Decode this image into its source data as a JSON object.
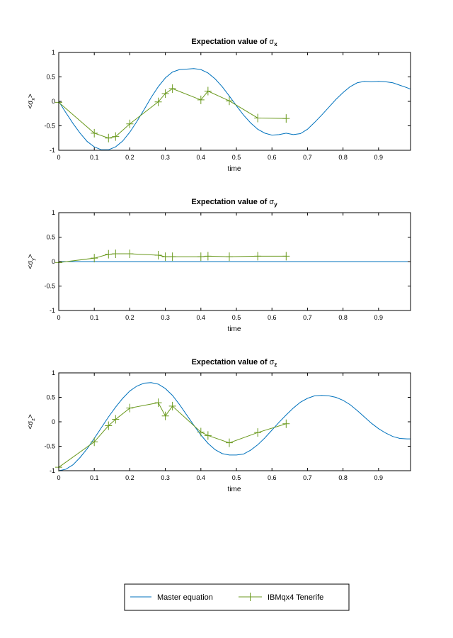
{
  "colors": {
    "master": "#0072BD",
    "ibm": "#6B9A1F",
    "axis": "#000000",
    "background": "#ffffff"
  },
  "legend": {
    "items": [
      {
        "label": "Master equation",
        "style": "line",
        "color": "#0072BD"
      },
      {
        "label": "IBMqx4 Tenerife",
        "style": "line-plus",
        "color": "#6B9A1F"
      }
    ],
    "placement": "bottom-center"
  },
  "chart_data": [
    {
      "type": "line",
      "title": "Expectation value of ",
      "title_symbol": "σ",
      "title_sub": "x",
      "xlabel": "time",
      "ylabel_prefix": "<σ",
      "ylabel_sub": "x",
      "ylabel_suffix": ">",
      "xlim": [
        0,
        0.99
      ],
      "ylim": [
        -1,
        1
      ],
      "xticks": [
        "0",
        "0.1",
        "0.2",
        "0.3",
        "0.4",
        "0.5",
        "0.6",
        "0.7",
        "0.8",
        "0.9"
      ],
      "yticks": [
        "-1",
        "-0.5",
        "0",
        "0.5",
        "1"
      ],
      "grid": false,
      "series": [
        {
          "name": "Master equation",
          "x": [
            0,
            0.02,
            0.04,
            0.06,
            0.08,
            0.1,
            0.12,
            0.14,
            0.16,
            0.18,
            0.2,
            0.22,
            0.24,
            0.26,
            0.28,
            0.3,
            0.32,
            0.34,
            0.36,
            0.38,
            0.4,
            0.42,
            0.44,
            0.46,
            0.48,
            0.5,
            0.52,
            0.54,
            0.56,
            0.58,
            0.6,
            0.62,
            0.64,
            0.66,
            0.68,
            0.7,
            0.72,
            0.74,
            0.76,
            0.78,
            0.8,
            0.82,
            0.84,
            0.86,
            0.88,
            0.9,
            0.92,
            0.94,
            0.96,
            0.98,
            0.99
          ],
          "y": [
            0,
            -0.23,
            -0.45,
            -0.65,
            -0.82,
            -0.93,
            -0.99,
            -0.99,
            -0.93,
            -0.81,
            -0.63,
            -0.41,
            -0.17,
            0.08,
            0.3,
            0.48,
            0.6,
            0.65,
            0.66,
            0.67,
            0.65,
            0.58,
            0.46,
            0.3,
            0.11,
            -0.09,
            -0.28,
            -0.44,
            -0.57,
            -0.65,
            -0.69,
            -0.68,
            -0.65,
            -0.68,
            -0.66,
            -0.57,
            -0.43,
            -0.28,
            -0.12,
            0.04,
            0.18,
            0.3,
            0.38,
            0.41,
            0.4,
            0.41,
            0.4,
            0.38,
            0.33,
            0.28,
            0.25
          ]
        },
        {
          "name": "IBMqx4 Tenerife",
          "x": [
            0,
            0.1,
            0.14,
            0.16,
            0.2,
            0.28,
            0.3,
            0.32,
            0.4,
            0.42,
            0.48,
            0.56,
            0.64
          ],
          "y": [
            -0.02,
            -0.65,
            -0.75,
            -0.72,
            -0.46,
            -0.01,
            0.16,
            0.26,
            0.03,
            0.21,
            0.01,
            -0.34,
            -0.35
          ]
        }
      ]
    },
    {
      "type": "line",
      "title": "Expectation value of ",
      "title_symbol": "σ",
      "title_sub": "y",
      "xlabel": "time",
      "ylabel_prefix": "<σ",
      "ylabel_sub": "y",
      "ylabel_suffix": ">",
      "xlim": [
        0,
        0.99
      ],
      "ylim": [
        -1,
        1
      ],
      "xticks": [
        "0",
        "0.1",
        "0.2",
        "0.3",
        "0.4",
        "0.5",
        "0.6",
        "0.7",
        "0.8",
        "0.9"
      ],
      "yticks": [
        "-1",
        "-0.5",
        "0",
        "0.5",
        "1"
      ],
      "grid": false,
      "series": [
        {
          "name": "Master equation",
          "x": [
            0,
            0.99
          ],
          "y": [
            0,
            0
          ]
        },
        {
          "name": "IBMqx4 Tenerife",
          "x": [
            0,
            0.1,
            0.14,
            0.16,
            0.2,
            0.28,
            0.3,
            0.32,
            0.4,
            0.42,
            0.48,
            0.56,
            0.64
          ],
          "y": [
            -0.02,
            0.07,
            0.15,
            0.16,
            0.16,
            0.13,
            0.1,
            0.1,
            0.1,
            0.11,
            0.1,
            0.11,
            0.11
          ]
        }
      ]
    },
    {
      "type": "line",
      "title": "Expectation value of ",
      "title_symbol": "σ",
      "title_sub": "z",
      "xlabel": "time",
      "ylabel_prefix": "<σ",
      "ylabel_sub": "z",
      "ylabel_suffix": ">",
      "xlim": [
        0,
        0.99
      ],
      "ylim": [
        -1,
        1
      ],
      "xticks": [
        "0",
        "0.1",
        "0.2",
        "0.3",
        "0.4",
        "0.5",
        "0.6",
        "0.7",
        "0.8",
        "0.9"
      ],
      "yticks": [
        "-1",
        "-0.5",
        "0",
        "0.5",
        "1"
      ],
      "grid": false,
      "series": [
        {
          "name": "Master equation",
          "x": [
            0,
            0.02,
            0.04,
            0.06,
            0.08,
            0.1,
            0.12,
            0.14,
            0.16,
            0.18,
            0.2,
            0.22,
            0.24,
            0.26,
            0.28,
            0.3,
            0.32,
            0.34,
            0.36,
            0.38,
            0.4,
            0.42,
            0.44,
            0.46,
            0.48,
            0.5,
            0.52,
            0.54,
            0.56,
            0.58,
            0.6,
            0.62,
            0.64,
            0.66,
            0.68,
            0.7,
            0.72,
            0.74,
            0.76,
            0.78,
            0.8,
            0.82,
            0.84,
            0.86,
            0.88,
            0.9,
            0.92,
            0.94,
            0.96,
            0.98,
            0.99
          ],
          "y": [
            -1.0,
            -0.97,
            -0.88,
            -0.73,
            -0.55,
            -0.34,
            -0.12,
            0.1,
            0.3,
            0.48,
            0.63,
            0.73,
            0.79,
            0.8,
            0.77,
            0.68,
            0.54,
            0.35,
            0.14,
            -0.07,
            -0.27,
            -0.44,
            -0.57,
            -0.65,
            -0.68,
            -0.68,
            -0.66,
            -0.58,
            -0.47,
            -0.33,
            -0.17,
            -0.01,
            0.14,
            0.28,
            0.4,
            0.48,
            0.53,
            0.54,
            0.53,
            0.5,
            0.44,
            0.35,
            0.23,
            0.1,
            -0.03,
            -0.14,
            -0.23,
            -0.3,
            -0.34,
            -0.35,
            -0.35
          ]
        },
        {
          "name": "IBMqx4 Tenerife",
          "x": [
            0,
            0.1,
            0.14,
            0.16,
            0.2,
            0.28,
            0.3,
            0.32,
            0.4,
            0.42,
            0.48,
            0.56,
            0.64
          ],
          "y": [
            -0.93,
            -0.41,
            -0.08,
            0.05,
            0.28,
            0.39,
            0.12,
            0.32,
            -0.21,
            -0.28,
            -0.43,
            -0.22,
            -0.04
          ]
        }
      ]
    }
  ]
}
